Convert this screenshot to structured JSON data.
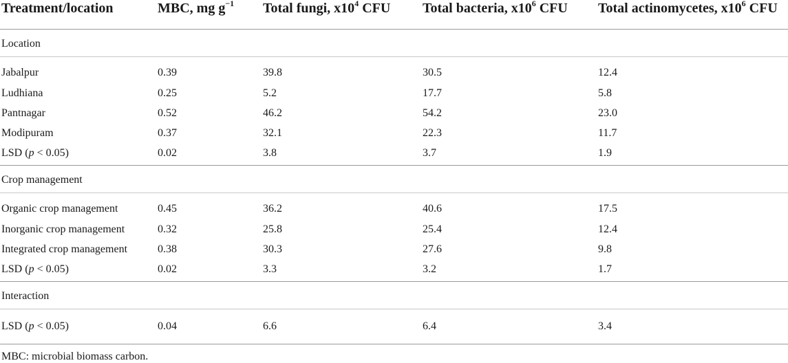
{
  "table": {
    "headers": [
      {
        "text": "Treatment/location",
        "sup": ""
      },
      {
        "text": "MBC, mg g",
        "sup": "−1",
        "after": ""
      },
      {
        "text": "Total fungi, x10",
        "sup": "4",
        "after": " CFU"
      },
      {
        "text": "Total bacteria, x10",
        "sup": "6",
        "after": " CFU"
      },
      {
        "text": "Total actinomycetes, x10",
        "sup": "6",
        "after": " CFU"
      }
    ],
    "groups": [
      {
        "section": "Location",
        "rows": [
          [
            "Jabalpur",
            "0.39",
            "39.8",
            "30.5",
            "12.4"
          ],
          [
            "Ludhiana",
            "0.25",
            "5.2",
            "17.7",
            "5.8"
          ],
          [
            "Pantnagar",
            "0.52",
            "46.2",
            "54.2",
            "23.0"
          ],
          [
            "Modipuram",
            "0.37",
            "32.1",
            "22.3",
            "11.7"
          ]
        ],
        "lsd": {
          "label_pre": "LSD (",
          "label_p": "p",
          "label_post": " < 0.05)",
          "values": [
            "0.02",
            "3.8",
            "3.7",
            "1.9"
          ]
        }
      },
      {
        "section": "Crop management",
        "rows": [
          [
            "Organic crop management",
            "0.45",
            "36.2",
            "40.6",
            "17.5"
          ],
          [
            "Inorganic crop management",
            "0.32",
            "25.8",
            "25.4",
            "12.4"
          ],
          [
            "Integrated crop management",
            "0.38",
            "30.3",
            "27.6",
            "9.8"
          ]
        ],
        "lsd": {
          "label_pre": "LSD (",
          "label_p": "p",
          "label_post": " < 0.05)",
          "values": [
            "0.02",
            "3.3",
            "3.2",
            "1.7"
          ]
        }
      },
      {
        "section": "Interaction",
        "rows": [],
        "lsd": {
          "label_pre": "LSD (",
          "label_p": "p",
          "label_post": " < 0.05)",
          "values": [
            "0.04",
            "6.6",
            "6.4",
            "3.4"
          ]
        }
      }
    ],
    "footnote": "MBC: microbial biomass carbon."
  }
}
